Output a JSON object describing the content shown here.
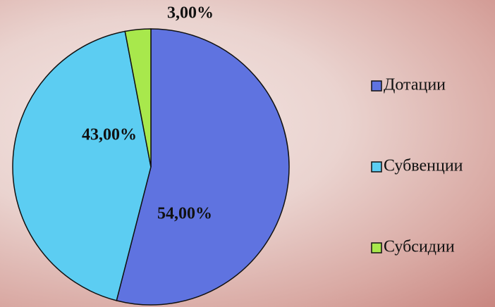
{
  "chart_data": {
    "type": "pie",
    "categories": [
      "Дотации",
      "Субвенции",
      "Субсидии"
    ],
    "values": [
      54,
      43,
      3
    ],
    "value_labels": [
      "54,00%",
      "43,00%",
      "3,00%"
    ],
    "colors": [
      "#5f73e0",
      "#5ccdf2",
      "#a8e84c"
    ],
    "legend": "right"
  }
}
